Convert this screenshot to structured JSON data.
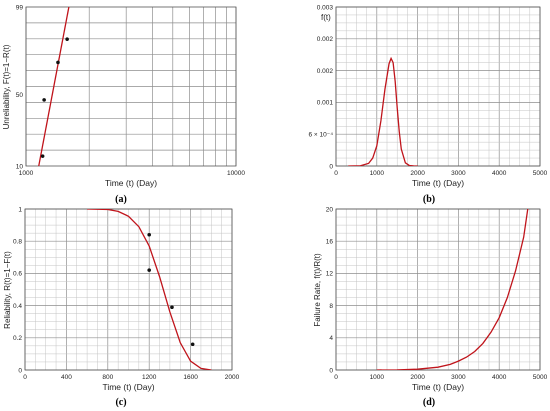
{
  "chart_data": [
    {
      "panel": "(a)",
      "type": "scatter",
      "xlabel": "Time (t) (Day)",
      "ylabel": "Unreliability, F(t)=1−R(t)",
      "x_scale": "log",
      "xlim": [
        1000,
        10000
      ],
      "ylim": [
        10,
        99
      ],
      "xticks": [
        "1000",
        "10000"
      ],
      "yticks": [
        "10",
        "50",
        "99"
      ],
      "series": [
        {
          "kind": "points",
          "x": [
            1200,
            1220,
            1420,
            1570
          ],
          "y": [
            15.5,
            47,
            68,
            81
          ]
        },
        {
          "kind": "line",
          "x": [
            1150,
            1600
          ],
          "y": [
            10,
            99
          ]
        }
      ]
    },
    {
      "panel": "(b)",
      "type": "line",
      "xlabel": "Time (t) (Day)",
      "ylabel": "f(t)",
      "xlim": [
        0,
        5000
      ],
      "ylim": [
        0,
        0.003
      ],
      "xticks": [
        "0",
        "1000",
        "2000",
        "3000",
        "4000",
        "5000"
      ],
      "yticks": [
        "0",
        "6 × 10⁻⁴",
        "0.001",
        "0.002",
        "0.002",
        "0.003"
      ],
      "series": [
        {
          "kind": "line",
          "x": [
            300,
            600,
            800,
            900,
            1000,
            1100,
            1200,
            1300,
            1350,
            1400,
            1450,
            1500,
            1550,
            1600,
            1700,
            1800,
            1900,
            2000
          ],
          "y": [
            0,
            5e-06,
            5e-05,
            0.00015,
            0.00038,
            0.00085,
            0.00145,
            0.00193,
            0.00203,
            0.00195,
            0.0016,
            0.0011,
            0.00065,
            0.00032,
            6e-05,
            8e-06,
            1e-06,
            0
          ]
        }
      ]
    },
    {
      "panel": "(c)",
      "type": "line",
      "xlabel": "Time (t) (Day)",
      "ylabel": "Reliability, R(t)=1−F(t)",
      "xlim": [
        0,
        2000
      ],
      "ylim": [
        0,
        1
      ],
      "xticks": [
        "0",
        "400",
        "800",
        "1200",
        "1600",
        "2000"
      ],
      "yticks": [
        "0",
        "0.2",
        "0.4",
        "0.6",
        "0.8",
        "1"
      ],
      "series": [
        {
          "kind": "line",
          "x": [
            600,
            800,
            900,
            1000,
            1100,
            1200,
            1300,
            1400,
            1500,
            1600,
            1700,
            1800
          ],
          "y": [
            1,
            0.997,
            0.985,
            0.955,
            0.89,
            0.77,
            0.58,
            0.36,
            0.17,
            0.055,
            0.01,
            0
          ]
        },
        {
          "kind": "points",
          "x": [
            1200,
            1200,
            1420,
            1620
          ],
          "y": [
            0.84,
            0.62,
            0.39,
            0.16
          ]
        }
      ]
    },
    {
      "panel": "(d)",
      "type": "line",
      "xlabel": "Time (t) (Day)",
      "ylabel": "Failure Rate, f(t)/R(t)",
      "xlim": [
        0,
        5000
      ],
      "ylim": [
        0,
        20
      ],
      "xticks": [
        "0",
        "1000",
        "2000",
        "3000",
        "4000",
        "5000"
      ],
      "yticks": [
        "0",
        "4",
        "8",
        "12",
        "16",
        "20"
      ],
      "series": [
        {
          "kind": "line",
          "x": [
            1000,
            1500,
            2000,
            2500,
            2800,
            3000,
            3200,
            3400,
            3600,
            3800,
            4000,
            4200,
            4400,
            4600,
            4700
          ],
          "y": [
            0,
            0.02,
            0.1,
            0.35,
            0.7,
            1.1,
            1.6,
            2.3,
            3.3,
            4.7,
            6.5,
            9.0,
            12.3,
            16.5,
            20
          ]
        }
      ]
    }
  ]
}
